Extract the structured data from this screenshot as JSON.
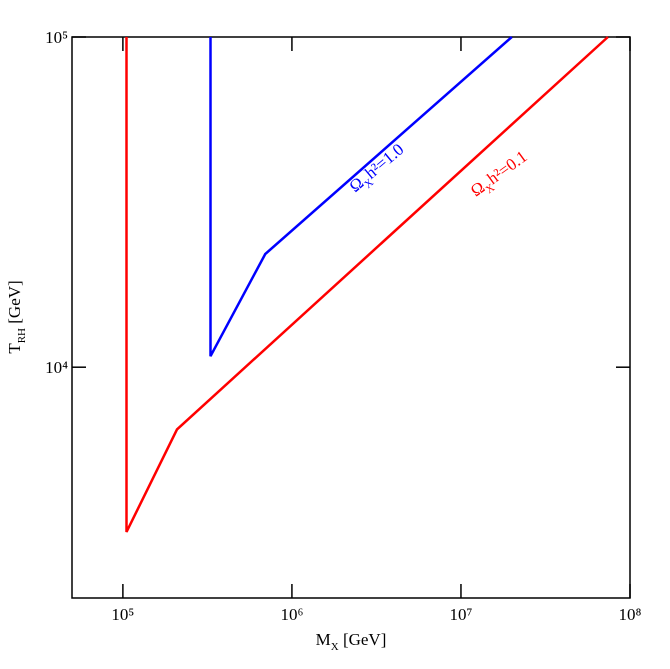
{
  "chart_data": {
    "type": "line",
    "x_label": {
      "main": "M",
      "sub": "X",
      "rest": " [GeV]"
    },
    "y_label": {
      "main": "T",
      "sub": "RH",
      "rest": " [GeV]"
    },
    "log_x": true,
    "log_y": true,
    "xlim": [
      50000,
      100000000
    ],
    "ylim": [
      2000,
      100000
    ],
    "xticks": [
      {
        "value": 100000,
        "label": "10⁵"
      },
      {
        "value": 1000000,
        "label": "10⁶"
      },
      {
        "value": 10000000,
        "label": "10⁷"
      },
      {
        "value": 100000000,
        "label": "10⁸"
      }
    ],
    "yticks": [
      {
        "value": 10000,
        "label": "10⁴"
      },
      {
        "value": 100000,
        "label": "10⁵"
      }
    ],
    "series": [
      {
        "color": "#ff0000",
        "x": [
          105000,
          105000,
          209000,
          74000000
        ],
        "values": [
          100000,
          3170,
          6480,
          100000
        ]
      },
      {
        "color": "#0000ff",
        "x": [
          330000,
          330000,
          695000,
          20000000
        ],
        "values": [
          100000,
          10800,
          22000,
          100000
        ]
      }
    ],
    "annotations": [
      {
        "main": "Ω",
        "sub": "X",
        "rest": "h²=1.0",
        "color": "#0000ff"
      },
      {
        "main": "Ω",
        "sub": "X",
        "rest": "h²=0.1",
        "color": "#ff0000"
      }
    ]
  }
}
